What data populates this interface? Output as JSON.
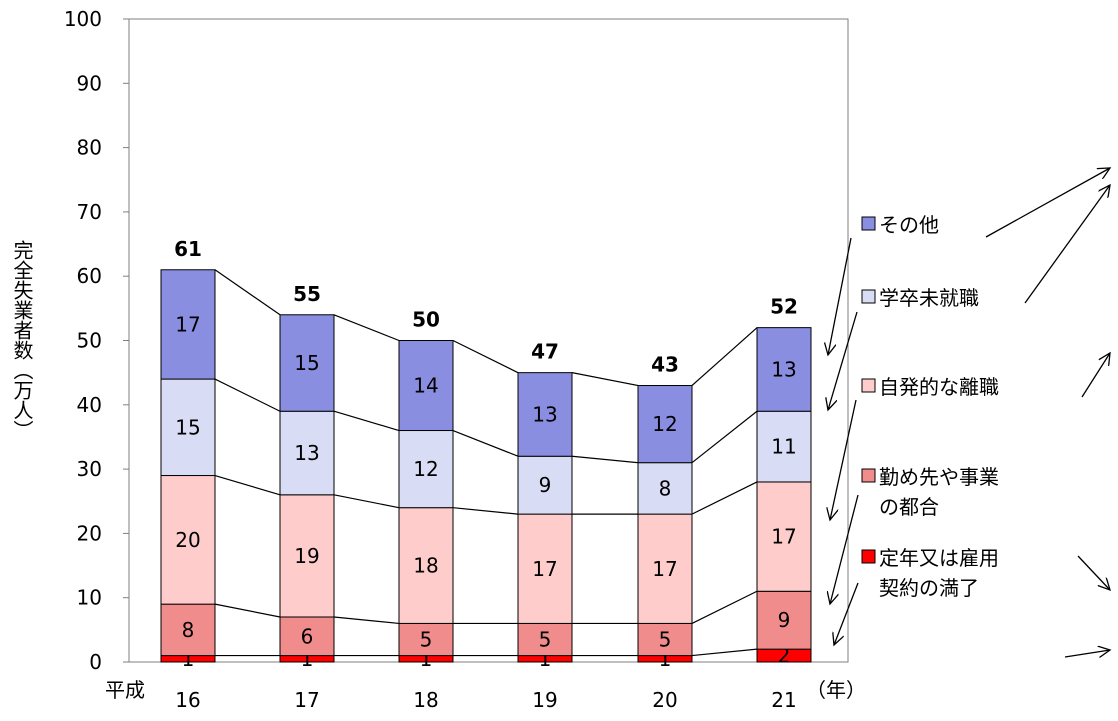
{
  "chart_data": {
    "type": "bar",
    "stacked": true,
    "x_prefix": "平成",
    "x_unit": "（年）",
    "categories": [
      "16",
      "17",
      "18",
      "19",
      "20",
      "21"
    ],
    "ylabel": "完全失業者数（万人）",
    "ylim": [
      0,
      100
    ],
    "yticks": [
      "0",
      "10",
      "20",
      "30",
      "40",
      "50",
      "60",
      "70",
      "80",
      "90",
      "100"
    ],
    "series": [
      {
        "name": "定年又は雇用契約の満了",
        "values": [
          1,
          1,
          1,
          1,
          1,
          2
        ],
        "color": "#ff0000"
      },
      {
        "name": "勤め先や事業の都合",
        "values": [
          8,
          6,
          5,
          5,
          5,
          9
        ],
        "color": "#f08c8c"
      },
      {
        "name": "自発的な離職",
        "values": [
          20,
          19,
          18,
          17,
          17,
          17
        ],
        "color": "#ffcccc"
      },
      {
        "name": "学卒未就職",
        "values": [
          15,
          13,
          12,
          9,
          8,
          11
        ],
        "color": "#d9dcf5"
      },
      {
        "name": "その他",
        "values": [
          17,
          15,
          14,
          13,
          12,
          13
        ],
        "color": "#8a8ee0"
      }
    ],
    "totals": [
      61,
      55,
      50,
      47,
      43,
      52
    ],
    "legend": [
      [
        "その他"
      ],
      [
        "学卒未就職"
      ],
      [
        "自発的な離職"
      ],
      [
        "勤め先や事業",
        "の都合"
      ],
      [
        "定年又は雇用",
        "契約の満了"
      ]
    ]
  }
}
